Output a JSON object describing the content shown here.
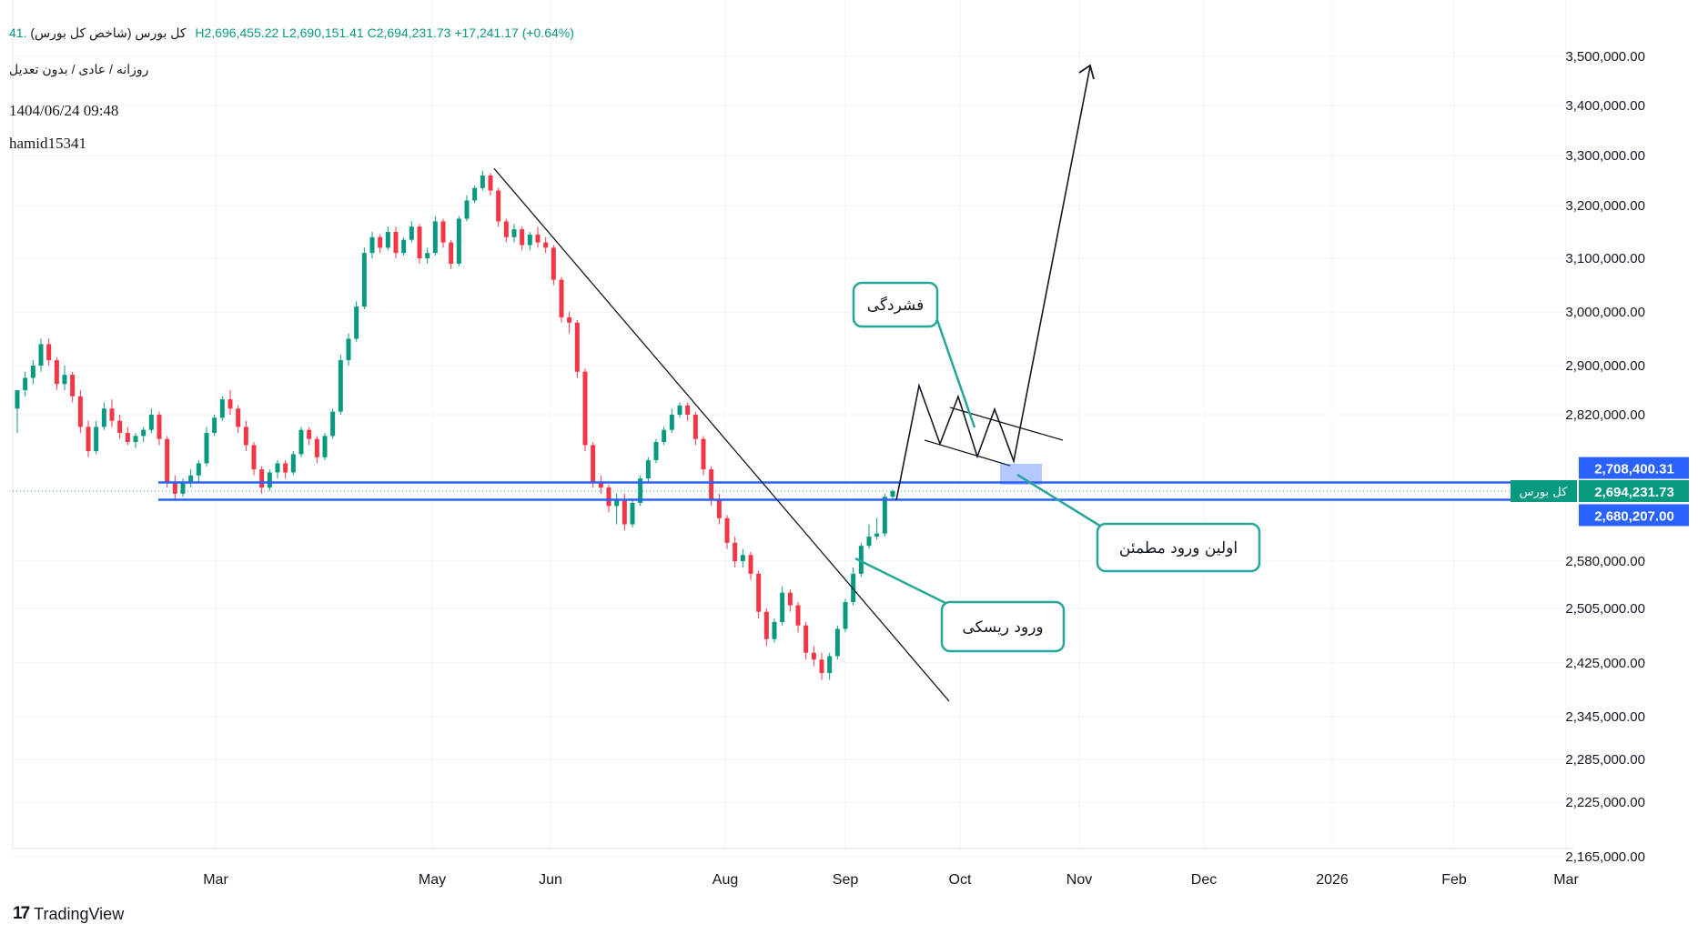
{
  "header": {
    "symbol": "کل بورس (شاخص کل بورس)",
    "ohlc_text": ".41  H2,696,455.22  L2,690,151.41  C2,694,231.73  +17,241.17 (+0.64%)",
    "subtitle": "روزانه / عادی / بدون تعدیل",
    "timestamp": "1404/06/24 09:48",
    "author": "hamid15341"
  },
  "brand": {
    "logo_mark": "17",
    "logo_text": "TradingView"
  },
  "colors": {
    "up": "#089981",
    "down": "#f23645",
    "support_line": "#2962ff",
    "callout": "#26a69a",
    "grid": "#f0f3fa"
  },
  "chart_data": {
    "type": "candlestick",
    "y_axis_labels": [
      {
        "value": 3500000,
        "label": "3,500,000.00"
      },
      {
        "value": 3400000,
        "label": "3,400,000.00"
      },
      {
        "value": 3300000,
        "label": "3,300,000.00"
      },
      {
        "value": 3200000,
        "label": "3,200,000.00"
      },
      {
        "value": 3100000,
        "label": "3,100,000.00"
      },
      {
        "value": 3000000,
        "label": "3,000,000.00"
      },
      {
        "value": 2900000,
        "label": "2,900,000.00"
      },
      {
        "value": 2820000,
        "label": "2,820,000.00"
      },
      {
        "value": 2580000,
        "label": "2,580,000.00"
      },
      {
        "value": 2505000,
        "label": "2,505,000.00"
      },
      {
        "value": 2425000,
        "label": "2,425,000.00"
      },
      {
        "value": 2345000,
        "label": "2,345,000.00"
      },
      {
        "value": 2285000,
        "label": "2,285,000.00"
      },
      {
        "value": 2225000,
        "label": "2,225,000.00"
      },
      {
        "value": 2165000,
        "label": "2,165,000.00"
      }
    ],
    "x_axis_labels": [
      "Mar",
      "May",
      "Jun",
      "Aug",
      "Sep",
      "Oct",
      "Nov",
      "Dec",
      "2026",
      "Feb",
      "Mar"
    ],
    "price_tags": {
      "upper": {
        "value": 2708400.31,
        "label": "2,708,400.31"
      },
      "current": {
        "value": 2694231.73,
        "label": "2,694,231.73",
        "name": "کل بورس"
      },
      "lower": {
        "value": 2680207.0,
        "label": "2,680,207.00"
      }
    },
    "annotations": {
      "consolidation": "فشردگی",
      "safe_entry": "اولین ورود مطمئن",
      "risky_entry": "ورود ریسکی"
    },
    "candles": [
      [
        2830000,
        2860000,
        2790000,
        2860000
      ],
      [
        2860000,
        2890000,
        2850000,
        2880000
      ],
      [
        2880000,
        2910000,
        2870000,
        2900000
      ],
      [
        2900000,
        2950000,
        2890000,
        2940000
      ],
      [
        2940000,
        2950000,
        2900000,
        2910000
      ],
      [
        2910000,
        2915000,
        2860000,
        2870000
      ],
      [
        2870000,
        2900000,
        2860000,
        2885000
      ],
      [
        2885000,
        2890000,
        2840000,
        2850000
      ],
      [
        2850000,
        2860000,
        2790000,
        2800000
      ],
      [
        2800000,
        2810000,
        2750000,
        2760000
      ],
      [
        2760000,
        2810000,
        2755000,
        2800000
      ],
      [
        2800000,
        2840000,
        2795000,
        2830000
      ],
      [
        2830000,
        2845000,
        2800000,
        2810000
      ],
      [
        2810000,
        2820000,
        2780000,
        2790000
      ],
      [
        2790000,
        2800000,
        2770000,
        2775000
      ],
      [
        2775000,
        2790000,
        2765000,
        2785000
      ],
      [
        2785000,
        2800000,
        2775000,
        2795000
      ],
      [
        2795000,
        2830000,
        2790000,
        2820000
      ],
      [
        2820000,
        2825000,
        2770000,
        2780000
      ],
      [
        2780000,
        2785000,
        2700000,
        2710000
      ],
      [
        2710000,
        2720000,
        2680000,
        2690000
      ],
      [
        2690000,
        2715000,
        2685000,
        2710000
      ],
      [
        2710000,
        2730000,
        2700000,
        2720000
      ],
      [
        2720000,
        2745000,
        2710000,
        2740000
      ],
      [
        2740000,
        2800000,
        2735000,
        2790000
      ],
      [
        2790000,
        2820000,
        2785000,
        2815000
      ],
      [
        2815000,
        2850000,
        2810000,
        2845000
      ],
      [
        2845000,
        2860000,
        2820000,
        2830000
      ],
      [
        2830000,
        2835000,
        2790000,
        2800000
      ],
      [
        2800000,
        2810000,
        2760000,
        2770000
      ],
      [
        2770000,
        2775000,
        2720000,
        2730000
      ],
      [
        2730000,
        2735000,
        2690000,
        2700000
      ],
      [
        2700000,
        2730000,
        2695000,
        2725000
      ],
      [
        2725000,
        2745000,
        2715000,
        2740000
      ],
      [
        2740000,
        2745000,
        2715000,
        2725000
      ],
      [
        2725000,
        2760000,
        2720000,
        2755000
      ],
      [
        2755000,
        2800000,
        2750000,
        2795000
      ],
      [
        2795000,
        2800000,
        2770000,
        2780000
      ],
      [
        2780000,
        2785000,
        2740000,
        2750000
      ],
      [
        2750000,
        2790000,
        2745000,
        2785000
      ],
      [
        2785000,
        2830000,
        2780000,
        2825000
      ],
      [
        2825000,
        2920000,
        2820000,
        2910000
      ],
      [
        2910000,
        2960000,
        2900000,
        2950000
      ],
      [
        2950000,
        3020000,
        2945000,
        3010000
      ],
      [
        3010000,
        3120000,
        3005000,
        3110000
      ],
      [
        3110000,
        3150000,
        3100000,
        3140000
      ],
      [
        3140000,
        3145000,
        3110000,
        3120000
      ],
      [
        3120000,
        3160000,
        3115000,
        3150000
      ],
      [
        3150000,
        3160000,
        3100000,
        3110000
      ],
      [
        3110000,
        3140000,
        3105000,
        3135000
      ],
      [
        3135000,
        3170000,
        3130000,
        3160000
      ],
      [
        3160000,
        3165000,
        3090000,
        3100000
      ],
      [
        3100000,
        3120000,
        3090000,
        3110000
      ],
      [
        3110000,
        3180000,
        3105000,
        3170000
      ],
      [
        3170000,
        3175000,
        3120000,
        3130000
      ],
      [
        3130000,
        3135000,
        3080000,
        3090000
      ],
      [
        3090000,
        3180000,
        3085000,
        3175000
      ],
      [
        3175000,
        3220000,
        3170000,
        3210000
      ],
      [
        3210000,
        3240000,
        3205000,
        3235000
      ],
      [
        3235000,
        3270000,
        3230000,
        3260000
      ],
      [
        3260000,
        3265000,
        3220000,
        3230000
      ],
      [
        3230000,
        3235000,
        3160000,
        3170000
      ],
      [
        3170000,
        3175000,
        3130000,
        3140000
      ],
      [
        3140000,
        3165000,
        3130000,
        3155000
      ],
      [
        3155000,
        3160000,
        3115000,
        3125000
      ],
      [
        3125000,
        3150000,
        3115000,
        3145000
      ],
      [
        3145000,
        3160000,
        3120000,
        3130000
      ],
      [
        3130000,
        3140000,
        3110000,
        3120000
      ],
      [
        3120000,
        3125000,
        3050000,
        3060000
      ],
      [
        3060000,
        3065000,
        2980000,
        2990000
      ],
      [
        2990000,
        3000000,
        2960000,
        2980000
      ],
      [
        2980000,
        2985000,
        2880000,
        2890000
      ],
      [
        2890000,
        2895000,
        2760000,
        2770000
      ],
      [
        2770000,
        2775000,
        2700000,
        2710000
      ],
      [
        2710000,
        2720000,
        2690000,
        2700000
      ],
      [
        2700000,
        2705000,
        2660000,
        2670000
      ],
      [
        2670000,
        2690000,
        2640000,
        2680000
      ],
      [
        2680000,
        2690000,
        2630000,
        2640000
      ],
      [
        2640000,
        2680000,
        2635000,
        2675000
      ],
      [
        2675000,
        2720000,
        2670000,
        2715000
      ],
      [
        2715000,
        2750000,
        2710000,
        2745000
      ],
      [
        2745000,
        2780000,
        2740000,
        2775000
      ],
      [
        2775000,
        2800000,
        2770000,
        2795000
      ],
      [
        2795000,
        2830000,
        2790000,
        2820000
      ],
      [
        2820000,
        2840000,
        2815000,
        2835000
      ],
      [
        2835000,
        2840000,
        2810000,
        2820000
      ],
      [
        2820000,
        2825000,
        2770000,
        2780000
      ],
      [
        2780000,
        2785000,
        2720000,
        2730000
      ],
      [
        2730000,
        2735000,
        2670000,
        2680000
      ],
      [
        2680000,
        2690000,
        2640000,
        2650000
      ],
      [
        2650000,
        2655000,
        2600000,
        2610000
      ],
      [
        2610000,
        2620000,
        2570000,
        2580000
      ],
      [
        2580000,
        2600000,
        2570000,
        2590000
      ],
      [
        2590000,
        2595000,
        2550000,
        2560000
      ],
      [
        2560000,
        2565000,
        2490000,
        2500000
      ],
      [
        2500000,
        2505000,
        2450000,
        2460000
      ],
      [
        2460000,
        2490000,
        2455000,
        2485000
      ],
      [
        2485000,
        2540000,
        2480000,
        2530000
      ],
      [
        2530000,
        2535000,
        2500000,
        2510000
      ],
      [
        2510000,
        2515000,
        2470000,
        2480000
      ],
      [
        2480000,
        2485000,
        2430000,
        2440000
      ],
      [
        2440000,
        2450000,
        2420000,
        2430000
      ],
      [
        2430000,
        2440000,
        2400000,
        2410000
      ],
      [
        2410000,
        2440000,
        2400000,
        2435000
      ],
      [
        2435000,
        2480000,
        2430000,
        2475000
      ],
      [
        2475000,
        2520000,
        2470000,
        2515000
      ],
      [
        2515000,
        2570000,
        2510000,
        2560000
      ],
      [
        2560000,
        2610000,
        2555000,
        2605000
      ],
      [
        2605000,
        2640000,
        2600000,
        2620000
      ],
      [
        2620000,
        2650000,
        2615000,
        2625000
      ],
      [
        2625000,
        2690000,
        2620000,
        2685000
      ],
      [
        2685000,
        2697000,
        2680000,
        2694231
      ]
    ],
    "drawings": {
      "downtrend_line": [
        [
          3274000,
          0
        ],
        [
          2368000,
          1
        ]
      ],
      "support_zone": [
        2680207,
        2708400.31
      ]
    }
  }
}
